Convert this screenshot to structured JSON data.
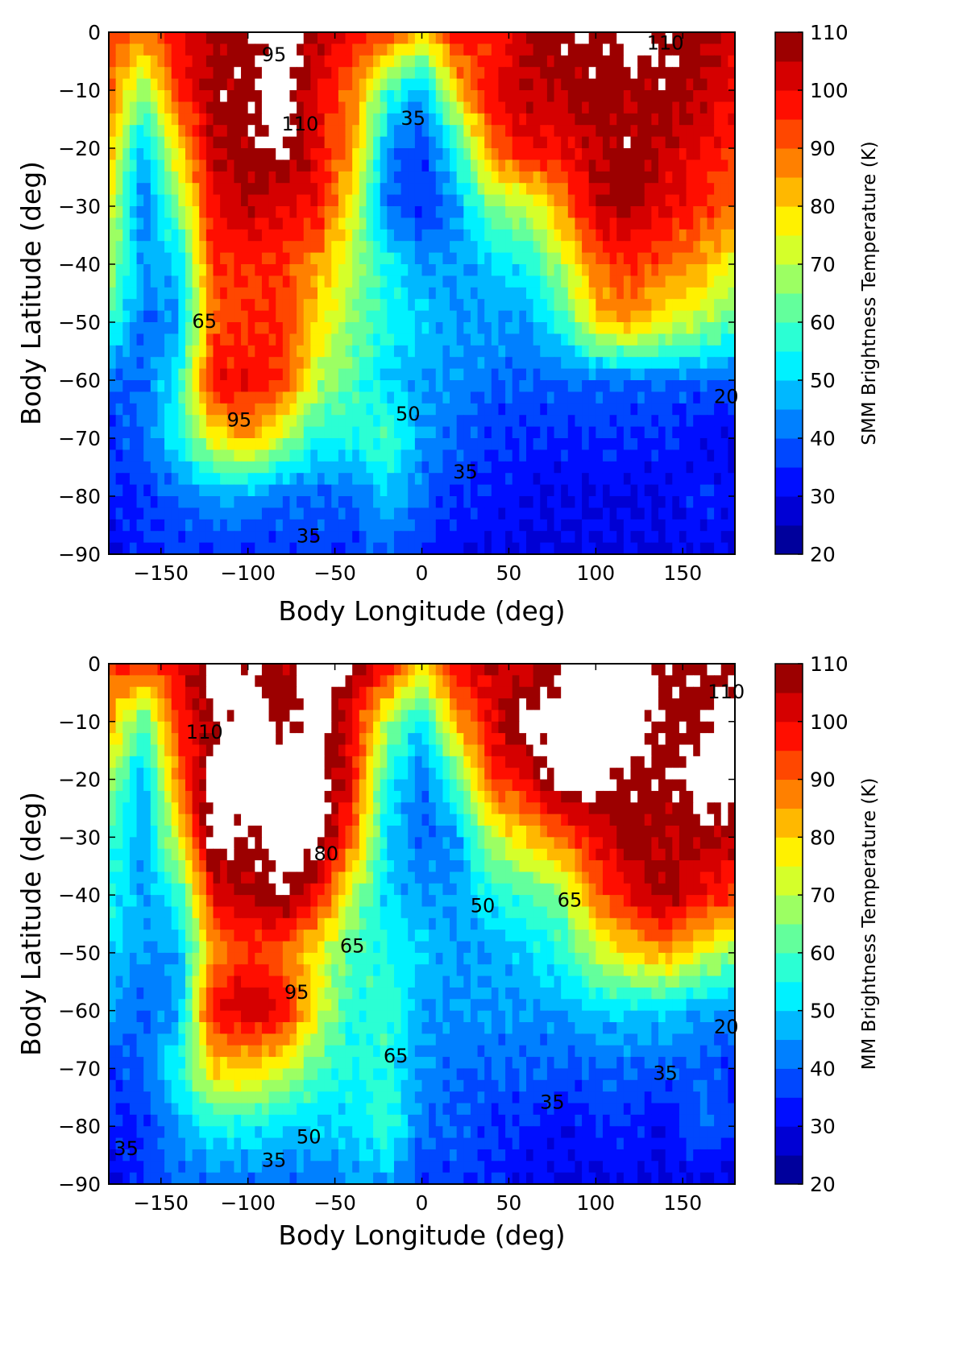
{
  "chart_data": [
    {
      "type": "heatmap",
      "subtype": "filled-contour",
      "xlabel": "Body Longitude (deg)",
      "ylabel": "Body Latitude (deg)",
      "colorbar_label": "SMM Brightness Temperature (K)",
      "xlim": [
        -180,
        180
      ],
      "ylim": [
        -90,
        0
      ],
      "xticks": [
        -150,
        -100,
        -50,
        0,
        50,
        100,
        150
      ],
      "yticks": [
        0,
        -10,
        -20,
        -30,
        -40,
        -50,
        -60,
        -70,
        -80,
        -90
      ],
      "colorbar_ticks": [
        110,
        100,
        90,
        80,
        70,
        60,
        50,
        40,
        30,
        20
      ],
      "color_range": [
        20,
        110
      ],
      "level_step": 5,
      "colormap": "jet",
      "above_range_color": "#ffffff",
      "lon": [
        -180,
        -160,
        -140,
        -120,
        -100,
        -80,
        -60,
        -40,
        -20,
        0,
        20,
        40,
        60,
        80,
        100,
        120,
        140,
        160,
        180
      ],
      "lat": [
        0,
        -10,
        -20,
        -30,
        -40,
        -50,
        -60,
        -70,
        -80,
        -90
      ],
      "values": [
        [
          95,
          90,
          100,
          105,
          108,
          115,
          105,
          100,
          95,
          80,
          100,
          95,
          105,
          110,
          108,
          115,
          110,
          108,
          100
        ],
        [
          90,
          65,
          95,
          108,
          108,
          115,
          100,
          90,
          60,
          45,
          80,
          100,
          105,
          105,
          108,
          105,
          108,
          105,
          100
        ],
        [
          85,
          45,
          80,
          105,
          108,
          112,
          100,
          85,
          45,
          35,
          55,
          90,
          100,
          100,
          105,
          108,
          105,
          100,
          95
        ],
        [
          75,
          40,
          65,
          100,
          105,
          100,
          100,
          75,
          40,
          35,
          45,
          65,
          70,
          85,
          105,
          108,
          100,
          95,
          90
        ],
        [
          70,
          45,
          50,
          95,
          95,
          95,
          85,
          70,
          55,
          45,
          45,
          50,
          55,
          70,
          90,
          95,
          90,
          85,
          75
        ],
        [
          60,
          40,
          45,
          90,
          95,
          95,
          80,
          65,
          55,
          50,
          45,
          45,
          45,
          55,
          80,
          85,
          75,
          70,
          60
        ],
        [
          40,
          40,
          55,
          100,
          100,
          95,
          70,
          60,
          50,
          45,
          45,
          40,
          40,
          40,
          40,
          40,
          40,
          40,
          40
        ],
        [
          35,
          40,
          55,
          75,
          85,
          70,
          55,
          55,
          60,
          45,
          40,
          35,
          35,
          35,
          35,
          35,
          35,
          30,
          30
        ],
        [
          35,
          35,
          40,
          45,
          45,
          40,
          40,
          40,
          50,
          40,
          35,
          35,
          30,
          30,
          30,
          30,
          30,
          35,
          30
        ],
        [
          30,
          35,
          35,
          35,
          35,
          35,
          35,
          35,
          40,
          35,
          30,
          30,
          30,
          30,
          30,
          30,
          30,
          30,
          30
        ]
      ],
      "contour_labels": [
        {
          "text": "95",
          "lon": -85,
          "lat": -4
        },
        {
          "text": "110",
          "lon": -70,
          "lat": -16
        },
        {
          "text": "35",
          "lon": -5,
          "lat": -15
        },
        {
          "text": "65",
          "lon": -125,
          "lat": -50
        },
        {
          "text": "95",
          "lon": -105,
          "lat": -67
        },
        {
          "text": "50",
          "lon": -8,
          "lat": -66
        },
        {
          "text": "35",
          "lon": -65,
          "lat": -87
        },
        {
          "text": "35",
          "lon": 25,
          "lat": -76
        },
        {
          "text": "110",
          "lon": 140,
          "lat": -2
        },
        {
          "text": "20",
          "lon": 175,
          "lat": -63
        }
      ]
    },
    {
      "type": "heatmap",
      "subtype": "filled-contour",
      "xlabel": "Body Longitude (deg)",
      "ylabel": "Body Latitude (deg)",
      "colorbar_label": "MM Brightness Temperature (K)",
      "xlim": [
        -180,
        180
      ],
      "ylim": [
        -90,
        0
      ],
      "xticks": [
        -150,
        -100,
        -50,
        0,
        50,
        100,
        150
      ],
      "yticks": [
        0,
        -10,
        -20,
        -30,
        -40,
        -50,
        -60,
        -70,
        -80,
        -90
      ],
      "colorbar_ticks": [
        110,
        100,
        90,
        80,
        70,
        60,
        50,
        40,
        30,
        20
      ],
      "color_range": [
        20,
        110
      ],
      "level_step": 5,
      "colormap": "jet",
      "above_range_color": "#ffffff",
      "lon": [
        -180,
        -160,
        -140,
        -120,
        -100,
        -80,
        -60,
        -40,
        -20,
        0,
        20,
        40,
        60,
        80,
        100,
        120,
        140,
        160,
        180
      ],
      "lat": [
        0,
        -10,
        -20,
        -30,
        -40,
        -50,
        -60,
        -70,
        -80,
        -90
      ],
      "values": [
        [
          95,
          95,
          100,
          115,
          110,
          105,
          115,
          110,
          100,
          80,
          100,
          105,
          100,
          110,
          115,
          115,
          108,
          108,
          108
        ],
        [
          85,
          60,
          95,
          108,
          115,
          108,
          115,
          100,
          70,
          50,
          85,
          100,
          115,
          115,
          115,
          115,
          108,
          108,
          115
        ],
        [
          70,
          45,
          90,
          115,
          115,
          115,
          115,
          100,
          55,
          40,
          60,
          95,
          100,
          115,
          115,
          108,
          108,
          115,
          115
        ],
        [
          60,
          45,
          75,
          115,
          108,
          115,
          115,
          90,
          50,
          40,
          45,
          70,
          80,
          90,
          100,
          108,
          105,
          108,
          105
        ],
        [
          55,
          45,
          55,
          100,
          105,
          110,
          100,
          70,
          50,
          45,
          45,
          55,
          60,
          65,
          90,
          100,
          108,
          100,
          95
        ],
        [
          50,
          45,
          45,
          85,
          95,
          90,
          75,
          60,
          55,
          50,
          45,
          45,
          50,
          55,
          70,
          80,
          85,
          75,
          65
        ],
        [
          45,
          40,
          45,
          100,
          105,
          100,
          75,
          55,
          60,
          45,
          45,
          45,
          45,
          45,
          50,
          50,
          50,
          45,
          45
        ],
        [
          35,
          40,
          55,
          80,
          80,
          75,
          60,
          55,
          55,
          45,
          40,
          40,
          40,
          40,
          40,
          40,
          40,
          40,
          35
        ],
        [
          35,
          35,
          45,
          55,
          55,
          50,
          50,
          50,
          60,
          40,
          40,
          35,
          35,
          30,
          35,
          35,
          30,
          40,
          35
        ],
        [
          30,
          35,
          40,
          40,
          40,
          40,
          40,
          45,
          45,
          35,
          35,
          35,
          30,
          30,
          30,
          30,
          30,
          30,
          30
        ]
      ],
      "contour_labels": [
        {
          "text": "110",
          "lon": -125,
          "lat": -12
        },
        {
          "text": "80",
          "lon": -55,
          "lat": -33
        },
        {
          "text": "50",
          "lon": 35,
          "lat": -42
        },
        {
          "text": "65",
          "lon": 85,
          "lat": -41
        },
        {
          "text": "65",
          "lon": -40,
          "lat": -49
        },
        {
          "text": "95",
          "lon": -72,
          "lat": -57
        },
        {
          "text": "65",
          "lon": -15,
          "lat": -68
        },
        {
          "text": "50",
          "lon": -65,
          "lat": -82
        },
        {
          "text": "35",
          "lon": -85,
          "lat": -86
        },
        {
          "text": "35",
          "lon": -170,
          "lat": -84
        },
        {
          "text": "35",
          "lon": 75,
          "lat": -76
        },
        {
          "text": "35",
          "lon": 140,
          "lat": -71
        },
        {
          "text": "20",
          "lon": 175,
          "lat": -63
        },
        {
          "text": "110",
          "lon": 175,
          "lat": -5
        }
      ]
    }
  ]
}
